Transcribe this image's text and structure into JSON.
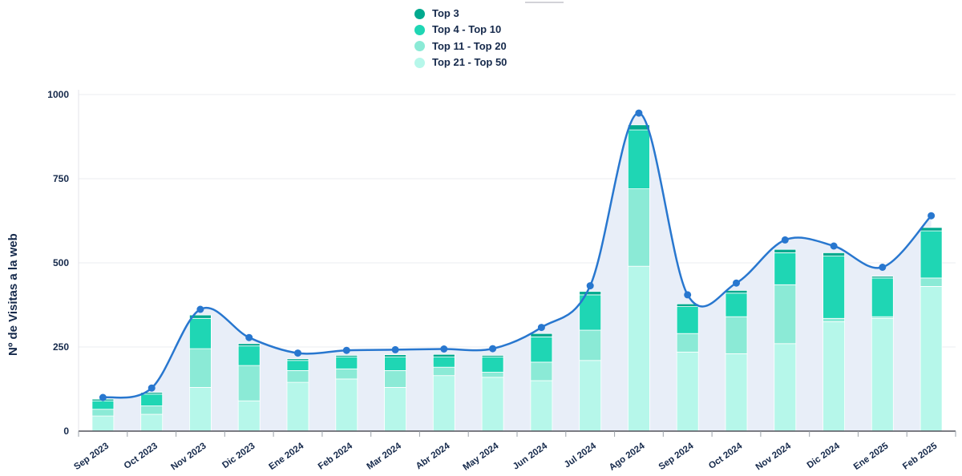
{
  "page": {
    "background": "#ffffff"
  },
  "y_axis": {
    "title": "Nº de Visitas a la web"
  },
  "chart_data": {
    "type": "bar",
    "stacked": true,
    "title": "",
    "xlabel": "",
    "ylabel": "Nº de Visitas a la web",
    "ylim": [
      0,
      1000
    ],
    "yticks": [
      0,
      250,
      500,
      750,
      1000
    ],
    "grid": true,
    "legend_position": "top-center",
    "categories": [
      "Sep 2023",
      "Oct 2023",
      "Nov 2023",
      "Dic 2023",
      "Ene 2024",
      "Feb 2024",
      "Mar 2024",
      "Abr 2024",
      "May 2024",
      "Jun 2024",
      "Jul 2024",
      "Ago 2024",
      "Sep 2024",
      "Oct 2024",
      "Nov 2024",
      "Dic 2024",
      "Ene 2025",
      "Feb 2025"
    ],
    "series": [
      {
        "name": "Top 3",
        "color": "#00a98e",
        "values": [
          5,
          5,
          10,
          7,
          5,
          5,
          7,
          8,
          5,
          10,
          10,
          15,
          8,
          8,
          10,
          10,
          5,
          10
        ]
      },
      {
        "name": "Top 4 - Top 10",
        "color": "#1fd6b4",
        "values": [
          25,
          35,
          90,
          58,
          30,
          35,
          40,
          30,
          45,
          75,
          105,
          175,
          80,
          70,
          95,
          185,
          115,
          140
        ]
      },
      {
        "name": "Top 11 - Top 20",
        "color": "#8bead6",
        "values": [
          20,
          25,
          115,
          105,
          35,
          30,
          50,
          25,
          15,
          55,
          90,
          230,
          55,
          110,
          175,
          10,
          5,
          25
        ]
      },
      {
        "name": "Top 21 - Top 50",
        "color": "#b6f7ea",
        "values": [
          45,
          50,
          130,
          90,
          145,
          155,
          130,
          165,
          160,
          150,
          210,
          490,
          235,
          230,
          260,
          325,
          335,
          430
        ]
      }
    ],
    "line_overlay": {
      "color": "#2877cf",
      "area_fill": "#e8eef8",
      "values": [
        100,
        128,
        362,
        278,
        232,
        240,
        242,
        244,
        245,
        308,
        432,
        945,
        405,
        440,
        568,
        550,
        487,
        640
      ]
    },
    "colors": {
      "axis_text": "#15294b",
      "gridline": "#ebecf1",
      "baseline": "#52525b",
      "tick": "#9aa0a8"
    }
  }
}
